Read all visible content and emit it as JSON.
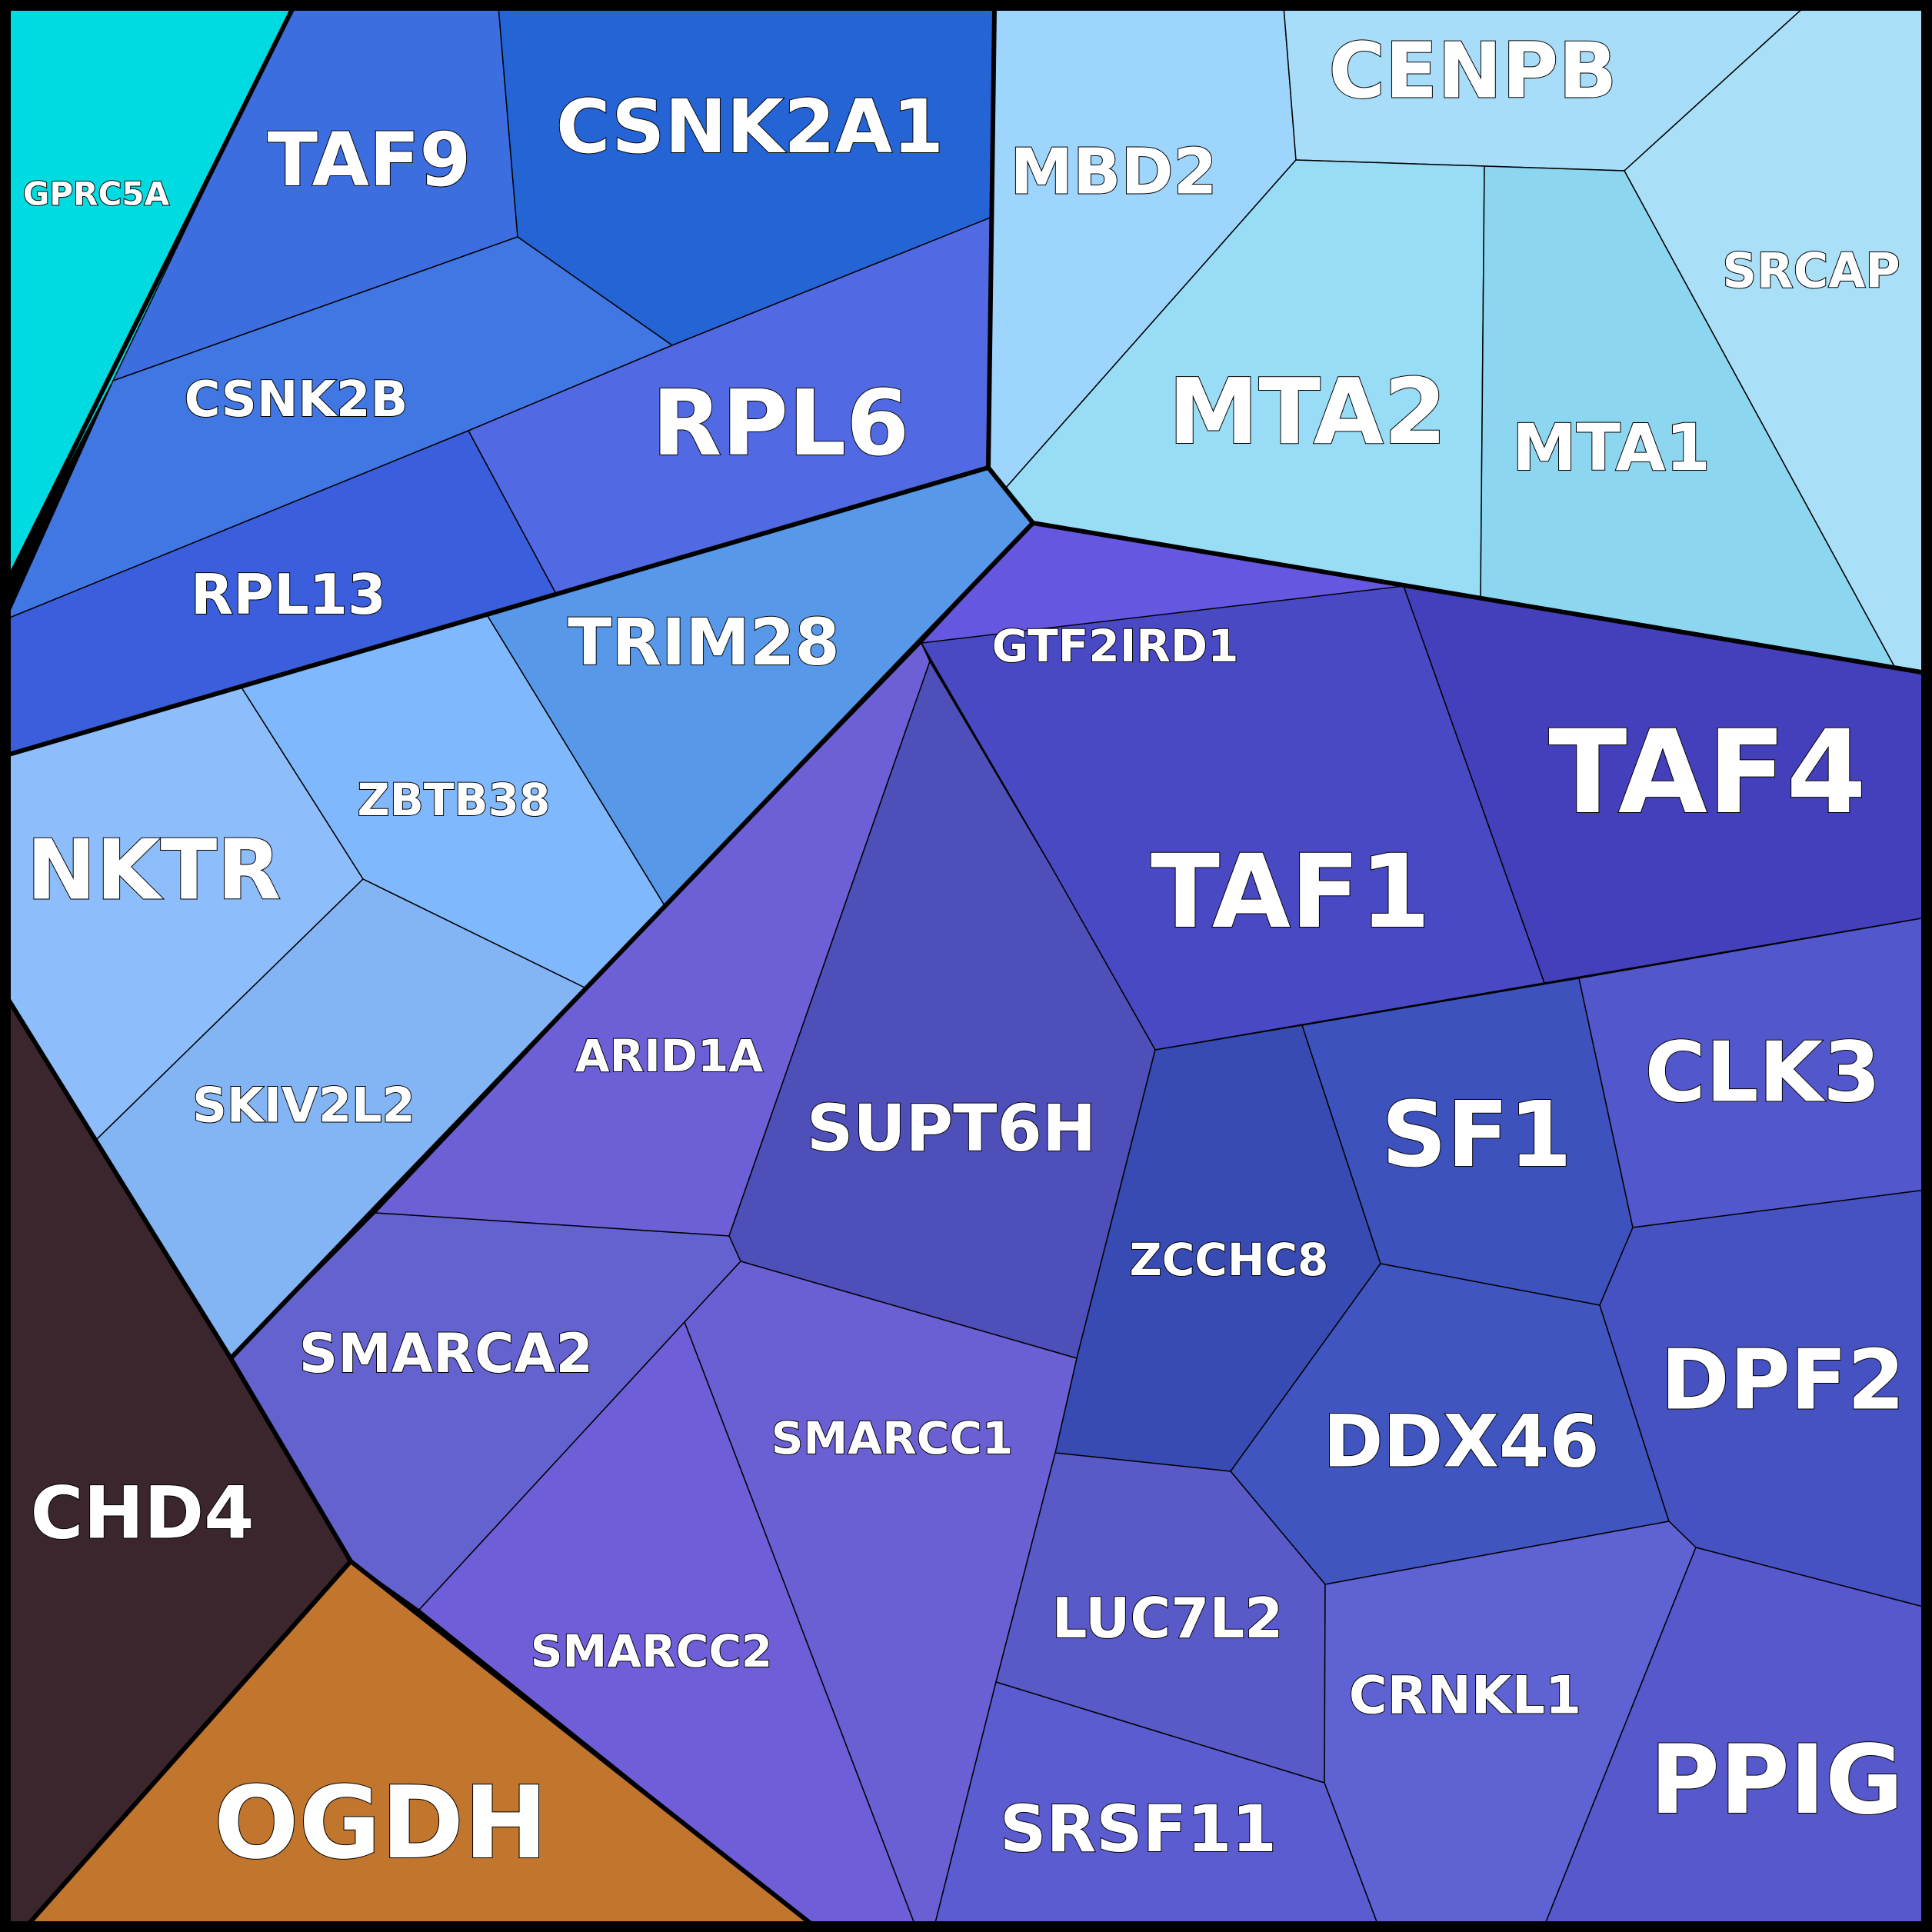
{
  "cells": [
    {
      "id": "GPRC5A",
      "label": "GPRC5A",
      "color": "#00dbe1"
    },
    {
      "id": "TAF9",
      "label": "TAF9",
      "color": "#3d6ee0"
    },
    {
      "id": "CSNK2A1",
      "label": "CSNK2A1",
      "color": "#2564d4"
    },
    {
      "id": "CSNK2B",
      "label": "CSNK2B",
      "color": "#4077e2"
    },
    {
      "id": "RPL6",
      "label": "RPL6",
      "color": "#516ae4"
    },
    {
      "id": "RPL13",
      "label": "RPL13",
      "color": "#3b5fdc"
    },
    {
      "id": "TRIM28",
      "label": "TRIM28",
      "color": "#5898e8"
    },
    {
      "id": "ZBTB38",
      "label": "ZBTB38",
      "color": "#7fb8fc"
    },
    {
      "id": "NKTR",
      "label": "NKTR",
      "color": "#8dbdfa"
    },
    {
      "id": "SKIV2L2",
      "label": "SKIV2L2",
      "color": "#83b5f4"
    },
    {
      "id": "MBD2",
      "label": "MBD2",
      "color": "#9dd5fd"
    },
    {
      "id": "CENPB",
      "label": "CENPB",
      "color": "#a8ddf9"
    },
    {
      "id": "MTA2",
      "label": "MTA2",
      "color": "#98dcf5"
    },
    {
      "id": "MTA1",
      "label": "MTA1",
      "color": "#8cd6f0"
    },
    {
      "id": "SRCAP",
      "label": "SRCAP",
      "color": "#a9e0f7"
    },
    {
      "id": "GTF2IRD1",
      "label": "GTF2IRD1",
      "color": "#6657e0"
    },
    {
      "id": "TAF1",
      "label": "TAF1",
      "color": "#4a49c4"
    },
    {
      "id": "TAF4",
      "label": "TAF4",
      "color": "#4440bc"
    },
    {
      "id": "ARID1A",
      "label": "ARID1A",
      "color": "#6d5fd6"
    },
    {
      "id": "SUPT6H",
      "label": "SUPT6H",
      "color": "#4e4fb8"
    },
    {
      "id": "ZCCHC8",
      "label": "ZCCHC8",
      "color": "#384bb2"
    },
    {
      "id": "SF1",
      "label": "SF1",
      "color": "#3d52bc"
    },
    {
      "id": "CLK3",
      "label": "CLK3",
      "color": "#5258cc"
    },
    {
      "id": "SMARCA2",
      "label": "SMARCA2",
      "color": "#6362cf"
    },
    {
      "id": "SMARCC1",
      "label": "SMARCC1",
      "color": "#6a60d4"
    },
    {
      "id": "SMARCC2",
      "label": "SMARCC2",
      "color": "#6e5ed8"
    },
    {
      "id": "DDX46",
      "label": "DDX46",
      "color": "#4055c0"
    },
    {
      "id": "DPF2",
      "label": "DPF2",
      "color": "#4752c2"
    },
    {
      "id": "LUC7L2",
      "label": "LUC7L2",
      "color": "#595ac8"
    },
    {
      "id": "CRNKL1",
      "label": "CRNKL1",
      "color": "#5e62d2"
    },
    {
      "id": "PPIG",
      "label": "PPIG",
      "color": "#5658cc"
    },
    {
      "id": "SRSF11",
      "label": "SRSF11",
      "color": "#5a5cd0"
    },
    {
      "id": "CHD4",
      "label": "CHD4",
      "color": "#3a262c"
    },
    {
      "id": "OGDH",
      "label": "OGDH",
      "color": "#c1752d"
    }
  ]
}
